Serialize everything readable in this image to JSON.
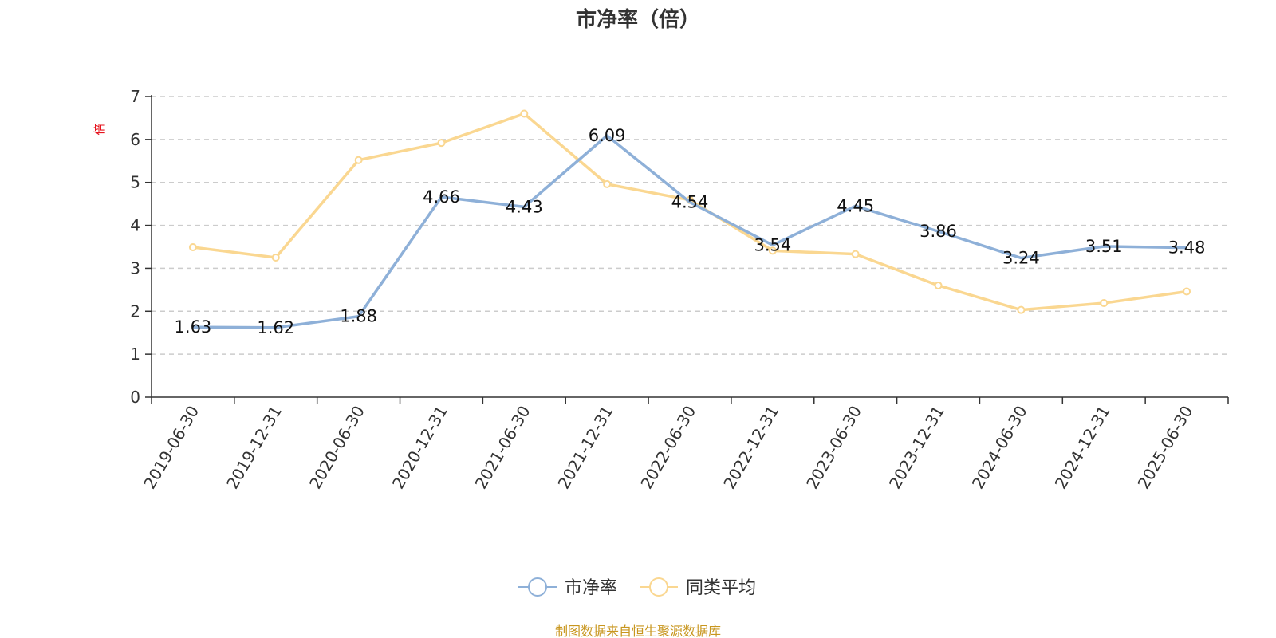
{
  "chart_data": {
    "type": "line",
    "title": "市净率（倍）",
    "ylabel": "倍",
    "ylim": [
      0,
      7
    ],
    "yticks": [
      "0",
      "1",
      "2",
      "3",
      "4",
      "5",
      "6",
      "7"
    ],
    "grid": true,
    "legend_position": "bottom",
    "categories": [
      "2019-06-30",
      "2019-12-31",
      "2020-06-30",
      "2020-12-31",
      "2021-06-30",
      "2021-12-31",
      "2022-06-30",
      "2022-12-31",
      "2023-06-30",
      "2023-12-31",
      "2024-06-30",
      "2024-12-31",
      "2025-06-30"
    ],
    "series": [
      {
        "name": "市净率",
        "color": "#8eb0d8",
        "values": [
          1.63,
          1.62,
          1.88,
          4.66,
          4.43,
          6.09,
          4.54,
          3.54,
          4.45,
          3.86,
          3.24,
          3.51,
          3.48
        ],
        "labels": [
          "1.63",
          "1.62",
          "1.88",
          "4.66",
          "4.43",
          "6.09",
          "4.54",
          "3.54",
          "4.45",
          "3.86",
          "3.24",
          "3.51",
          "3.48"
        ]
      },
      {
        "name": "同类平均",
        "color": "#fad791",
        "values": [
          3.49,
          3.25,
          5.52,
          5.92,
          6.6,
          4.96,
          4.59,
          3.41,
          3.33,
          2.6,
          2.03,
          2.19,
          2.46
        ]
      }
    ]
  },
  "footer": {
    "source": "制图数据来自恒生聚源数据库",
    "source_color": "#c8961e"
  }
}
